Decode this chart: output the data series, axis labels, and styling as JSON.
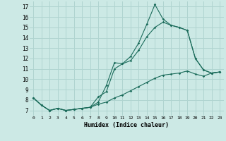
{
  "xlabel": "Humidex (Indice chaleur)",
  "xlim": [
    -0.5,
    23.5
  ],
  "ylim": [
    6.5,
    17.5
  ],
  "xticks": [
    0,
    1,
    2,
    3,
    4,
    5,
    6,
    7,
    8,
    9,
    10,
    11,
    12,
    13,
    14,
    15,
    16,
    17,
    18,
    19,
    20,
    21,
    22,
    23
  ],
  "yticks": [
    7,
    8,
    9,
    10,
    11,
    12,
    13,
    14,
    15,
    16,
    17
  ],
  "bg_color": "#cce9e5",
  "grid_color": "#b0d4d0",
  "line_color": "#1a6b5a",
  "line1_y": [
    8.2,
    7.5,
    7.0,
    7.2,
    7.0,
    7.1,
    7.2,
    7.3,
    7.8,
    9.4,
    11.6,
    11.5,
    12.2,
    13.5,
    15.3,
    17.2,
    15.8,
    15.2,
    15.0,
    14.7,
    12.0,
    10.9,
    10.6,
    10.7
  ],
  "line2_y": [
    8.2,
    7.5,
    7.0,
    7.2,
    7.0,
    7.1,
    7.2,
    7.3,
    8.3,
    8.8,
    11.0,
    11.5,
    11.8,
    12.8,
    14.1,
    15.0,
    15.5,
    15.2,
    15.0,
    14.7,
    12.0,
    10.9,
    10.6,
    10.7
  ],
  "line3_y": [
    8.2,
    7.5,
    7.0,
    7.2,
    7.0,
    7.1,
    7.2,
    7.3,
    7.6,
    7.8,
    8.2,
    8.5,
    8.9,
    9.3,
    9.7,
    10.1,
    10.4,
    10.5,
    10.6,
    10.8,
    10.5,
    10.3,
    10.6,
    10.7
  ]
}
